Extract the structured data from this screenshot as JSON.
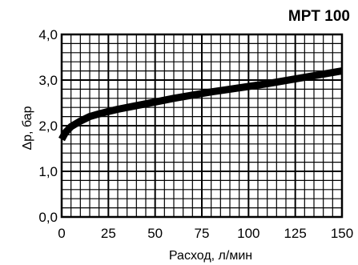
{
  "chart_data": {
    "type": "line",
    "title": "MPT 100",
    "xlabel": "Расход, л/мин",
    "ylabel": "Δp, бар",
    "xlim": [
      0,
      150
    ],
    "ylim": [
      0,
      4
    ],
    "x_ticks": [
      "0",
      "25",
      "50",
      "75",
      "100",
      "125",
      "150"
    ],
    "y_ticks": [
      "0,0",
      "1,0",
      "2,0",
      "3,0",
      "4,0"
    ],
    "grid": true,
    "series": [
      {
        "x": [
          0,
          2,
          5,
          10,
          15,
          20,
          25,
          30,
          40,
          50,
          60,
          70,
          80,
          90,
          100,
          110,
          120,
          130,
          140,
          150
        ],
        "y": [
          1.7,
          1.85,
          1.98,
          2.1,
          2.2,
          2.26,
          2.31,
          2.36,
          2.44,
          2.52,
          2.6,
          2.67,
          2.74,
          2.8,
          2.86,
          2.92,
          2.99,
          3.06,
          3.13,
          3.2
        ]
      }
    ],
    "colors": {
      "line": "#000000",
      "grid": "#000000"
    }
  }
}
